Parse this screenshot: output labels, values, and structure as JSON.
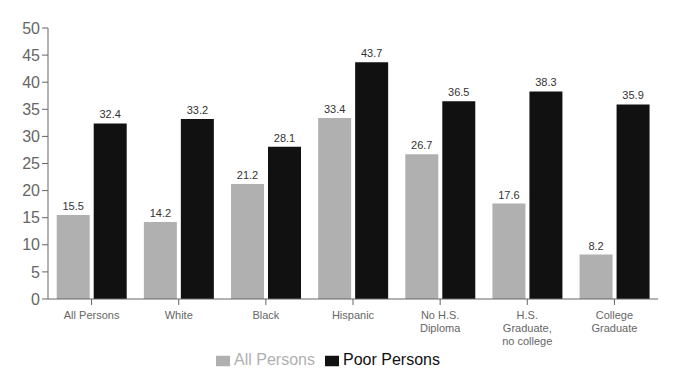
{
  "chart_data": {
    "type": "bar",
    "categories": [
      "All Persons",
      "White",
      "Black",
      "Hispanic",
      "No H.S.\nDiploma",
      "H.S.\nGraduate,\nno college",
      "College\nGraduate"
    ],
    "series": [
      {
        "name": "All Persons",
        "color": "#b0b0b0",
        "values": [
          15.5,
          14.2,
          21.2,
          33.4,
          26.7,
          17.6,
          8.2
        ]
      },
      {
        "name": "Poor Persons",
        "color": "#111111",
        "values": [
          32.4,
          33.2,
          28.1,
          43.7,
          36.5,
          38.3,
          35.9
        ]
      }
    ],
    "ylim": [
      0,
      50
    ],
    "yticks": [
      0,
      5,
      10,
      15,
      20,
      25,
      30,
      35,
      40,
      45,
      50
    ],
    "grid": false,
    "legend": "bottom",
    "data_labels": true
  }
}
